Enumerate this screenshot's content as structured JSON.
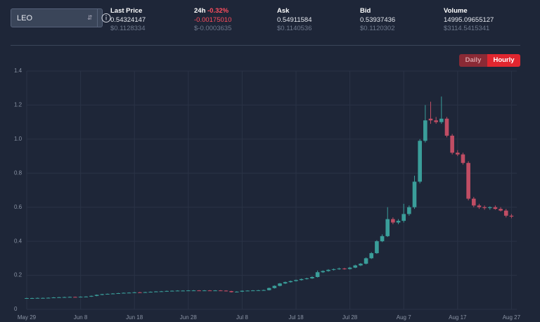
{
  "selector": {
    "value": "LEO"
  },
  "stats": [
    {
      "label": "Last Price",
      "value": "0.54324147",
      "usd": "$0.1128334"
    },
    {
      "label": "24h",
      "change": "-0.32%",
      "value": "-0.00175010",
      "usd": "$-0.0003635"
    },
    {
      "label": "Ask",
      "value": "0.54911584",
      "usd": "$0.1140536"
    },
    {
      "label": "Bid",
      "value": "0.53937436",
      "usd": "$0.1120302"
    },
    {
      "label": "Volume",
      "value": "14995.09655127",
      "usd": "$3114.5415341"
    }
  ],
  "buttons": [
    "Daily",
    "Hourly"
  ],
  "chart_data": {
    "type": "candlestick",
    "up_color": "#3a9e9a",
    "down_color": "#c04d64",
    "grid": true,
    "x": [
      "May 29",
      "May 30",
      "May 31",
      "Jun 1",
      "Jun 2",
      "Jun 3",
      "Jun 4",
      "Jun 5",
      "Jun 6",
      "Jun 7",
      "Jun 8",
      "Jun 9",
      "Jun 10",
      "Jun 11",
      "Jun 12",
      "Jun 13",
      "Jun 14",
      "Jun 15",
      "Jun 16",
      "Jun 17",
      "Jun 18",
      "Jun 19",
      "Jun 20",
      "Jun 21",
      "Jun 22",
      "Jun 23",
      "Jun 24",
      "Jun 25",
      "Jun 26",
      "Jun 27",
      "Jun 28",
      "Jun 29",
      "Jun 30",
      "Jul 1",
      "Jul 2",
      "Jul 3",
      "Jul 4",
      "Jul 5",
      "Jul 6",
      "Jul 7",
      "Jul 8",
      "Jul 9",
      "Jul 10",
      "Jul 11",
      "Jul 12",
      "Jul 13",
      "Jul 14",
      "Jul 15",
      "Jul 16",
      "Jul 17",
      "Jul 18",
      "Jul 19",
      "Jul 20",
      "Jul 21",
      "Jul 22",
      "Jul 23",
      "Jul 24",
      "Jul 25",
      "Jul 26",
      "Jul 27",
      "Jul 28",
      "Jul 29",
      "Jul 30",
      "Jul 31",
      "Aug 1",
      "Aug 2",
      "Aug 3",
      "Aug 4",
      "Aug 5",
      "Aug 6",
      "Aug 7",
      "Aug 8",
      "Aug 9",
      "Aug 10",
      "Aug 11",
      "Aug 12",
      "Aug 13",
      "Aug 14",
      "Aug 15",
      "Aug 16",
      "Aug 17",
      "Aug 18",
      "Aug 19",
      "Aug 20",
      "Aug 21",
      "Aug 22",
      "Aug 23",
      "Aug 24",
      "Aug 25",
      "Aug 26",
      "Aug 27"
    ],
    "open": [
      0.065,
      0.066,
      0.066,
      0.067,
      0.067,
      0.068,
      0.07,
      0.071,
      0.072,
      0.073,
      0.072,
      0.074,
      0.075,
      0.079,
      0.085,
      0.089,
      0.091,
      0.093,
      0.095,
      0.097,
      0.098,
      0.1,
      0.099,
      0.101,
      0.103,
      0.105,
      0.106,
      0.108,
      0.109,
      0.11,
      0.11,
      0.111,
      0.111,
      0.11,
      0.111,
      0.11,
      0.111,
      0.11,
      0.107,
      0.101,
      0.104,
      0.109,
      0.11,
      0.111,
      0.112,
      0.113,
      0.125,
      0.138,
      0.152,
      0.16,
      0.166,
      0.172,
      0.178,
      0.182,
      0.19,
      0.218,
      0.225,
      0.232,
      0.236,
      0.24,
      0.237,
      0.245,
      0.258,
      0.268,
      0.3,
      0.33,
      0.4,
      0.43,
      0.53,
      0.51,
      0.52,
      0.56,
      0.6,
      0.75,
      0.99,
      1.12,
      1.11,
      1.1,
      1.12,
      1.02,
      0.92,
      0.91,
      0.86,
      0.65,
      0.61,
      0.6,
      0.595,
      0.6,
      0.59,
      0.58,
      0.55
    ],
    "high": [
      0.068,
      0.068,
      0.069,
      0.069,
      0.07,
      0.072,
      0.073,
      0.074,
      0.075,
      0.075,
      0.076,
      0.077,
      0.081,
      0.087,
      0.091,
      0.093,
      0.095,
      0.097,
      0.099,
      0.1,
      0.102,
      0.103,
      0.103,
      0.105,
      0.107,
      0.108,
      0.11,
      0.111,
      0.112,
      0.112,
      0.113,
      0.113,
      0.113,
      0.113,
      0.113,
      0.113,
      0.113,
      0.112,
      0.109,
      0.106,
      0.111,
      0.112,
      0.113,
      0.114,
      0.116,
      0.128,
      0.141,
      0.155,
      0.163,
      0.169,
      0.175,
      0.181,
      0.186,
      0.194,
      0.228,
      0.229,
      0.236,
      0.24,
      0.245,
      0.244,
      0.249,
      0.262,
      0.272,
      0.305,
      0.336,
      0.406,
      0.44,
      0.6,
      0.54,
      0.53,
      0.62,
      0.61,
      0.785,
      1.0,
      1.2,
      1.22,
      1.13,
      1.25,
      1.13,
      1.03,
      0.935,
      0.92,
      0.87,
      0.66,
      0.62,
      0.61,
      0.605,
      0.61,
      0.6,
      0.59,
      0.56
    ],
    "low": [
      0.063,
      0.064,
      0.064,
      0.065,
      0.065,
      0.066,
      0.068,
      0.069,
      0.07,
      0.07,
      0.07,
      0.072,
      0.073,
      0.077,
      0.083,
      0.087,
      0.089,
      0.091,
      0.093,
      0.095,
      0.096,
      0.097,
      0.097,
      0.099,
      0.101,
      0.103,
      0.104,
      0.106,
      0.107,
      0.108,
      0.108,
      0.109,
      0.108,
      0.108,
      0.108,
      0.108,
      0.108,
      0.105,
      0.099,
      0.099,
      0.102,
      0.107,
      0.108,
      0.109,
      0.11,
      0.111,
      0.122,
      0.135,
      0.149,
      0.157,
      0.163,
      0.169,
      0.175,
      0.179,
      0.187,
      0.214,
      0.221,
      0.228,
      0.232,
      0.233,
      0.234,
      0.242,
      0.254,
      0.264,
      0.296,
      0.326,
      0.395,
      0.425,
      0.5,
      0.5,
      0.51,
      0.55,
      0.59,
      0.74,
      0.98,
      1.09,
      1.09,
      1.09,
      1.01,
      0.91,
      0.9,
      0.85,
      0.64,
      0.6,
      0.59,
      0.585,
      0.585,
      0.585,
      0.575,
      0.54,
      0.535
    ],
    "close": [
      0.066,
      0.066,
      0.067,
      0.067,
      0.068,
      0.07,
      0.071,
      0.072,
      0.073,
      0.072,
      0.074,
      0.075,
      0.079,
      0.085,
      0.089,
      0.091,
      0.093,
      0.095,
      0.097,
      0.098,
      0.1,
      0.099,
      0.101,
      0.103,
      0.105,
      0.106,
      0.108,
      0.109,
      0.11,
      0.11,
      0.111,
      0.111,
      0.11,
      0.111,
      0.11,
      0.111,
      0.11,
      0.107,
      0.101,
      0.104,
      0.109,
      0.11,
      0.111,
      0.112,
      0.113,
      0.125,
      0.138,
      0.152,
      0.16,
      0.166,
      0.172,
      0.178,
      0.182,
      0.19,
      0.218,
      0.225,
      0.232,
      0.236,
      0.24,
      0.237,
      0.245,
      0.258,
      0.268,
      0.3,
      0.33,
      0.4,
      0.43,
      0.53,
      0.51,
      0.52,
      0.56,
      0.6,
      0.75,
      0.99,
      1.11,
      1.11,
      1.1,
      1.12,
      1.02,
      0.92,
      0.91,
      0.86,
      0.65,
      0.61,
      0.6,
      0.595,
      0.6,
      0.59,
      0.58,
      0.55,
      0.545
    ],
    "xticks": [
      "May 29",
      "Jun 8",
      "Jun 18",
      "Jun 28",
      "Jul 8",
      "Jul 18",
      "Jul 28",
      "Aug 7",
      "Aug 17",
      "Aug 27"
    ],
    "ylim": [
      0,
      1.4
    ],
    "yticks": [
      0,
      0.2,
      0.4,
      0.6,
      0.8,
      {
        "value": 1,
        "label": "1.0"
      },
      1.2,
      1.4
    ]
  }
}
